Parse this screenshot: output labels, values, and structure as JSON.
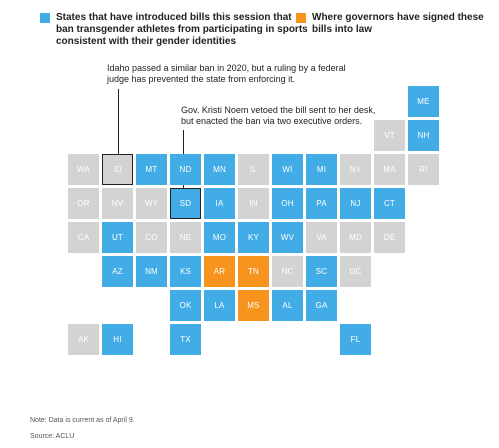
{
  "legend": [
    {
      "label": "States that have introduced bills this session that\nban transgender athletes from participating in sports\nconsistent with their gender identities",
      "color": "#41ace6"
    },
    {
      "label": "Where governors have signed these\nbills into law",
      "color": "#f7941d"
    }
  ],
  "colors": {
    "introduced": "#41ace6",
    "signed": "#f7941d",
    "none": "#d3d3d3"
  },
  "annotations": {
    "id": "Idaho passed a similar ban in 2020, but a ruling by a federal\njudge has prevented the state from enforcing it.",
    "sd": "Gov. Kristi Noem vetoed the bill sent to her desk,\nbut enacted the ban via two executive orders."
  },
  "states": [
    {
      "abbr": "ME",
      "status": "introduced"
    },
    {
      "abbr": "VT",
      "status": "none"
    },
    {
      "abbr": "NH",
      "status": "introduced"
    },
    {
      "abbr": "WA",
      "status": "none"
    },
    {
      "abbr": "ID",
      "status": "none"
    },
    {
      "abbr": "MT",
      "status": "introduced"
    },
    {
      "abbr": "ND",
      "status": "introduced"
    },
    {
      "abbr": "MN",
      "status": "introduced"
    },
    {
      "abbr": "IL",
      "status": "none"
    },
    {
      "abbr": "WI",
      "status": "introduced"
    },
    {
      "abbr": "MI",
      "status": "introduced"
    },
    {
      "abbr": "NY",
      "status": "none"
    },
    {
      "abbr": "MA",
      "status": "none"
    },
    {
      "abbr": "RI",
      "status": "none"
    },
    {
      "abbr": "OR",
      "status": "none"
    },
    {
      "abbr": "NV",
      "status": "none"
    },
    {
      "abbr": "WY",
      "status": "none"
    },
    {
      "abbr": "SD",
      "status": "introduced"
    },
    {
      "abbr": "IA",
      "status": "introduced"
    },
    {
      "abbr": "IN",
      "status": "none"
    },
    {
      "abbr": "OH",
      "status": "introduced"
    },
    {
      "abbr": "PA",
      "status": "introduced"
    },
    {
      "abbr": "NJ",
      "status": "introduced"
    },
    {
      "abbr": "CT",
      "status": "introduced"
    },
    {
      "abbr": "CA",
      "status": "none"
    },
    {
      "abbr": "UT",
      "status": "introduced"
    },
    {
      "abbr": "CO",
      "status": "none"
    },
    {
      "abbr": "NE",
      "status": "none"
    },
    {
      "abbr": "MO",
      "status": "introduced"
    },
    {
      "abbr": "KY",
      "status": "introduced"
    },
    {
      "abbr": "WV",
      "status": "introduced"
    },
    {
      "abbr": "VA",
      "status": "none"
    },
    {
      "abbr": "MD",
      "status": "none"
    },
    {
      "abbr": "DE",
      "status": "none"
    },
    {
      "abbr": "AZ",
      "status": "introduced"
    },
    {
      "abbr": "NM",
      "status": "introduced"
    },
    {
      "abbr": "KS",
      "status": "introduced"
    },
    {
      "abbr": "AR",
      "status": "signed"
    },
    {
      "abbr": "TN",
      "status": "signed"
    },
    {
      "abbr": "NC",
      "status": "none"
    },
    {
      "abbr": "SC",
      "status": "introduced"
    },
    {
      "abbr": "DC",
      "status": "none"
    },
    {
      "abbr": "OK",
      "status": "introduced"
    },
    {
      "abbr": "LA",
      "status": "introduced"
    },
    {
      "abbr": "MS",
      "status": "signed"
    },
    {
      "abbr": "AL",
      "status": "introduced"
    },
    {
      "abbr": "GA",
      "status": "introduced"
    },
    {
      "abbr": "AK",
      "status": "none"
    },
    {
      "abbr": "HI",
      "status": "introduced"
    },
    {
      "abbr": "TX",
      "status": "introduced"
    },
    {
      "abbr": "FL",
      "status": "introduced"
    }
  ],
  "footer": {
    "note": "Note: Data is current as of April 9.",
    "source": "Source: ACLU"
  }
}
